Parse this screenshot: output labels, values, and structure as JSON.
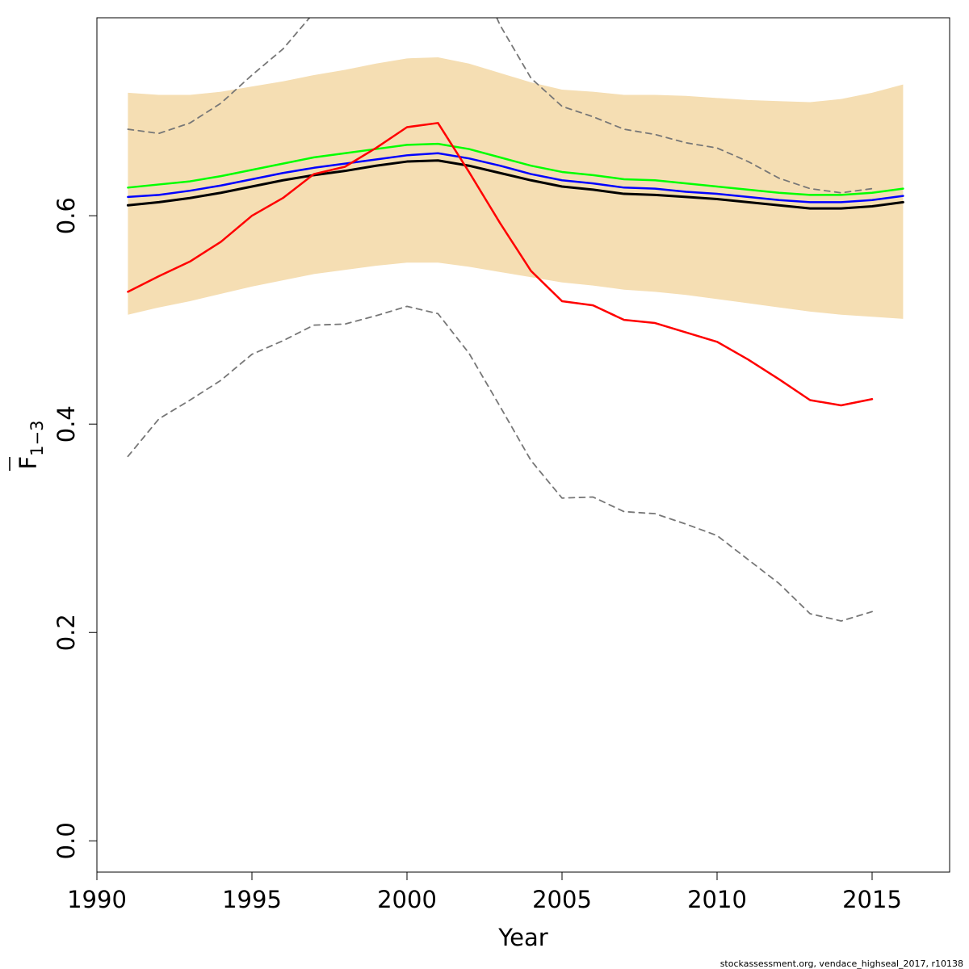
{
  "chart_data": {
    "type": "line",
    "xlabel": "Year",
    "ylabel_main": "F",
    "ylabel_sub": "1−3",
    "xlim": [
      1990,
      2017.5
    ],
    "ylim": [
      -0.03,
      0.79
    ],
    "x_ticks": [
      1990,
      1995,
      2000,
      2005,
      2010,
      2015
    ],
    "y_ticks": [
      0.0,
      0.2,
      0.4,
      0.6
    ],
    "y_tick_labels": [
      "0.0",
      "0.2",
      "0.4",
      "0.6"
    ],
    "grid": false,
    "footer": "stockassessment.org, vendace_highseal_2017, r10138",
    "band": {
      "color": "#F5DEB3",
      "x": [
        1991,
        1992,
        1993,
        1994,
        1995,
        1996,
        1997,
        1998,
        1999,
        2000,
        2001,
        2002,
        2003,
        2004,
        2005,
        2006,
        2007,
        2008,
        2009,
        2010,
        2011,
        2012,
        2013,
        2014,
        2015,
        2016
      ],
      "upper": [
        0.718,
        0.716,
        0.716,
        0.719,
        0.724,
        0.729,
        0.735,
        0.74,
        0.746,
        0.751,
        0.752,
        0.746,
        0.737,
        0.728,
        0.721,
        0.719,
        0.716,
        0.716,
        0.715,
        0.713,
        0.711,
        0.71,
        0.709,
        0.712,
        0.718,
        0.726
      ],
      "lower": [
        0.505,
        0.512,
        0.518,
        0.525,
        0.532,
        0.538,
        0.544,
        0.548,
        0.552,
        0.555,
        0.555,
        0.551,
        0.546,
        0.541,
        0.536,
        0.533,
        0.529,
        0.527,
        0.524,
        0.52,
        0.516,
        0.512,
        0.508,
        0.505,
        0.503,
        0.501
      ]
    },
    "series": [
      {
        "color": "#000000",
        "dash": false,
        "width": 3,
        "x": [
          1991,
          1992,
          1993,
          1994,
          1995,
          1996,
          1997,
          1998,
          1999,
          2000,
          2001,
          2002,
          2003,
          2004,
          2005,
          2006,
          2007,
          2008,
          2009,
          2010,
          2011,
          2012,
          2013,
          2014,
          2015,
          2016
        ],
        "values": [
          0.61,
          0.613,
          0.617,
          0.622,
          0.628,
          0.634,
          0.639,
          0.643,
          0.648,
          0.652,
          0.653,
          0.648,
          0.641,
          0.634,
          0.628,
          0.625,
          0.621,
          0.62,
          0.618,
          0.616,
          0.613,
          0.61,
          0.607,
          0.607,
          0.609,
          0.613
        ]
      },
      {
        "color": "#0000FF",
        "dash": false,
        "width": 2.5,
        "x": [
          1991,
          1992,
          1993,
          1994,
          1995,
          1996,
          1997,
          1998,
          1999,
          2000,
          2001,
          2002,
          2003,
          2004,
          2005,
          2006,
          2007,
          2008,
          2009,
          2010,
          2011,
          2012,
          2013,
          2014,
          2015,
          2016
        ],
        "values": [
          0.618,
          0.62,
          0.624,
          0.629,
          0.635,
          0.641,
          0.646,
          0.65,
          0.654,
          0.658,
          0.66,
          0.655,
          0.648,
          0.64,
          0.634,
          0.631,
          0.627,
          0.626,
          0.623,
          0.621,
          0.618,
          0.615,
          0.613,
          0.613,
          0.615,
          0.619
        ]
      },
      {
        "color": "#00FF00",
        "dash": false,
        "width": 2.5,
        "x": [
          1991,
          1992,
          1993,
          1994,
          1995,
          1996,
          1997,
          1998,
          1999,
          2000,
          2001,
          2002,
          2003,
          2004,
          2005,
          2006,
          2007,
          2008,
          2009,
          2010,
          2011,
          2012,
          2013,
          2014,
          2015,
          2016
        ],
        "values": [
          0.627,
          0.63,
          0.633,
          0.638,
          0.644,
          0.65,
          0.656,
          0.66,
          0.664,
          0.668,
          0.669,
          0.664,
          0.656,
          0.648,
          0.642,
          0.639,
          0.635,
          0.634,
          0.631,
          0.628,
          0.625,
          0.622,
          0.62,
          0.62,
          0.622,
          0.626
        ]
      },
      {
        "color": "#FF0000",
        "dash": false,
        "width": 2.5,
        "x": [
          1991,
          1992,
          1993,
          1994,
          1995,
          1996,
          1997,
          1998,
          1999,
          2000,
          2001,
          2002,
          2003,
          2004,
          2005,
          2006,
          2007,
          2008,
          2009,
          2010,
          2011,
          2012,
          2013,
          2014,
          2015
        ],
        "values": [
          0.527,
          0.542,
          0.556,
          0.575,
          0.6,
          0.617,
          0.64,
          0.647,
          0.665,
          0.685,
          0.689,
          0.642,
          0.593,
          0.547,
          0.518,
          0.514,
          0.5,
          0.497,
          0.488,
          0.479,
          0.462,
          0.443,
          0.423,
          0.418,
          0.424
        ]
      },
      {
        "color": "#777777",
        "dash": true,
        "width": 1.8,
        "x": [
          1991,
          1992,
          1993,
          1994,
          1995,
          1996,
          1997,
          1998,
          1999,
          2000,
          2001,
          2002,
          2003,
          2004,
          2005,
          2006,
          2007,
          2008,
          2009,
          2010,
          2011,
          2012,
          2013,
          2014,
          2015
        ],
        "values": [
          0.683,
          0.679,
          0.689,
          0.708,
          0.735,
          0.76,
          0.795,
          0.83,
          0.86,
          0.88,
          0.88,
          0.85,
          0.783,
          0.732,
          0.705,
          0.695,
          0.683,
          0.678,
          0.67,
          0.665,
          0.652,
          0.636,
          0.626,
          0.622,
          0.626
        ]
      },
      {
        "color": "#777777",
        "dash": true,
        "width": 1.8,
        "x": [
          1991,
          1992,
          1993,
          1994,
          1995,
          1996,
          1997,
          1998,
          1999,
          2000,
          2001,
          2002,
          2003,
          2004,
          2005,
          2006,
          2007,
          2008,
          2009,
          2010,
          2011,
          2012,
          2013,
          2014,
          2015
        ],
        "values": [
          0.369,
          0.405,
          0.423,
          0.442,
          0.467,
          0.48,
          0.495,
          0.496,
          0.504,
          0.513,
          0.506,
          0.468,
          0.417,
          0.365,
          0.329,
          0.33,
          0.316,
          0.314,
          0.304,
          0.293,
          0.27,
          0.247,
          0.218,
          0.211,
          0.22
        ]
      }
    ]
  }
}
